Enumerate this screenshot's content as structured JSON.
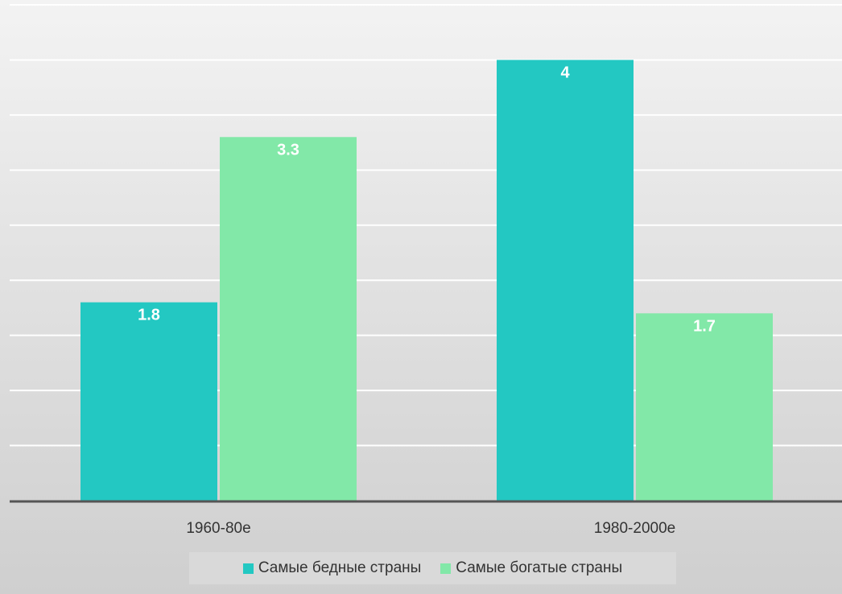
{
  "colors": {
    "poorest": "#23c8c2",
    "richest": "#82e8a8",
    "grid": "#ffffff",
    "axis": "#555555"
  },
  "chart_data": {
    "type": "bar",
    "categories": [
      "1960-80е",
      "1980-2000е"
    ],
    "series": [
      {
        "name": "Самые бедные страны",
        "values": [
          1.8,
          4
        ]
      },
      {
        "name": "Самые богатые страны",
        "values": [
          3.3,
          1.7
        ]
      }
    ],
    "ylim": [
      0,
      4.5
    ],
    "grid": true,
    "legend": "bottom"
  }
}
